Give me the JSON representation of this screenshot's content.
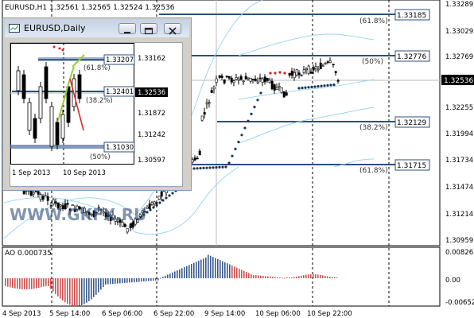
{
  "main_chart": {
    "header": "EURUSD,H1  1.32561 1.32565 1.32524 1.32536",
    "current_price": "1.32536",
    "price_axis": [
      "1.33289",
      "1.33029",
      "1.32769",
      "1.32536",
      "1.32255",
      "1.31994",
      "1.31734",
      "1.31474",
      "1.31214",
      "1.30959"
    ],
    "fib_levels": [
      {
        "pct": "(61.8%)",
        "price": "1.33185"
      },
      {
        "pct": "(50%)",
        "price": "1.32776"
      },
      {
        "pct": "(38.2%)",
        "price": "1.32129"
      },
      {
        "pct": "(61.8%)",
        "price": "1.31715"
      }
    ],
    "x_axis": [
      "4 Sep 2013",
      "5 Sep 14:00",
      "6 Sep 06:00",
      "6 Sep 22:00",
      "9 Sep 14:00",
      "10 Sep 06:00",
      "10 Sep 22:00"
    ],
    "watermark": "WWW.GKFX.RU"
  },
  "ao_panel": {
    "label": "AO 0.000735",
    "axis": [
      "0.008263",
      "0.00",
      "-0.006522"
    ]
  },
  "daily_window": {
    "title": "EURUSD,Daily",
    "price_axis": [
      "1.33162",
      "1.32536",
      "1.31872",
      "1.31242",
      "1.30597"
    ],
    "current_price": "1.32536",
    "levels": [
      {
        "pct": "(61.8%)",
        "price": "1.33207"
      },
      {
        "pct": "(38.2%)",
        "price": "1.32401"
      },
      {
        "pct": "(50%)",
        "price": "1.31030"
      }
    ],
    "x_axis": [
      "1 Sep 2013",
      "10 Sep 2013"
    ]
  },
  "colors": {
    "fib_line": "#2d4f7a",
    "ao_up": "#3b5a8c",
    "ao_down": "#d05050",
    "band": "#9ed7ef",
    "sar": "#1c3557"
  }
}
